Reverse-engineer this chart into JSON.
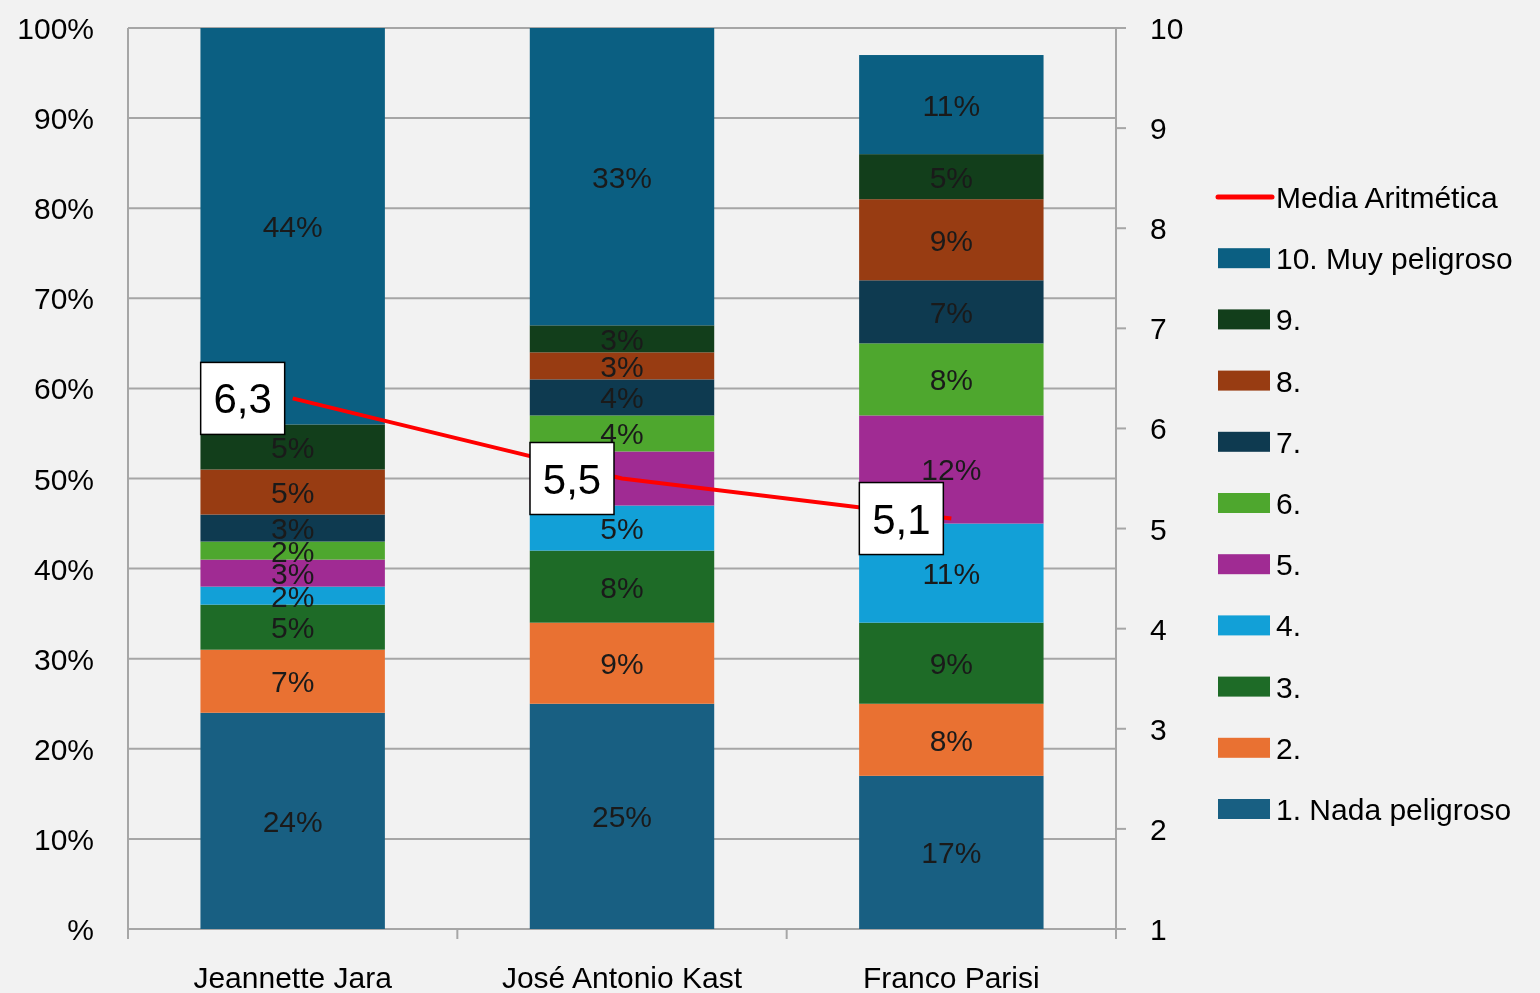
{
  "chart_data": {
    "type": "bar",
    "stacked": true,
    "categories": [
      "Jeannette Jara",
      "José Antonio Kast",
      "Franco Parisi"
    ],
    "series": [
      {
        "name": "1. Nada peligroso",
        "color": "#185f82",
        "values": [
          24,
          25,
          17
        ],
        "value_labels": [
          "24%",
          "25%",
          "17%"
        ]
      },
      {
        "name": "2.",
        "color": "#e97132",
        "values": [
          7,
          9,
          8
        ],
        "value_labels": [
          "7%",
          "9%",
          "8%"
        ]
      },
      {
        "name": "3.",
        "color": "#1e6b27",
        "values": [
          5,
          8,
          9
        ],
        "value_labels": [
          "5%",
          "8%",
          "9%"
        ]
      },
      {
        "name": "4.",
        "color": "#12a0d7",
        "values": [
          2,
          5,
          11
        ],
        "value_labels": [
          "2%",
          "5%",
          "11%"
        ]
      },
      {
        "name": "5.",
        "color": "#a02b93",
        "values": [
          3,
          6,
          12
        ],
        "value_labels": [
          "3%",
          null,
          "12%"
        ]
      },
      {
        "name": "6.",
        "color": "#4ea72e",
        "values": [
          2,
          4,
          8
        ],
        "value_labels": [
          "2%",
          "4%",
          "8%"
        ]
      },
      {
        "name": "7.",
        "color": "#0e3a50",
        "values": [
          3,
          4,
          7
        ],
        "value_labels": [
          "3%",
          "4%",
          "7%"
        ]
      },
      {
        "name": "8.",
        "color": "#983c12",
        "values": [
          5,
          3,
          9
        ],
        "value_labels": [
          "5%",
          "3%",
          "9%"
        ]
      },
      {
        "name": "9.",
        "color": "#123e1b",
        "values": [
          5,
          3,
          5
        ],
        "value_labels": [
          "5%",
          "3%",
          "5%"
        ]
      },
      {
        "name": "10. Muy peligroso",
        "color": "#0b5f82",
        "values": [
          44,
          33,
          11
        ],
        "value_labels": [
          "44%",
          "33%",
          "11%"
        ]
      },
      {
        "name": "Media Aritmética",
        "type": "line",
        "axis": "y2",
        "color": "#ff0000",
        "values": [
          6.3,
          5.5,
          5.1
        ],
        "value_labels": [
          "6,3",
          "5,5",
          "5,1"
        ]
      }
    ],
    "ylim": [
      0,
      100
    ],
    "yticks": [
      {
        "value": 0,
        "label": "%"
      },
      {
        "value": 10,
        "label": "10%"
      },
      {
        "value": 20,
        "label": "20%"
      },
      {
        "value": 30,
        "label": "30%"
      },
      {
        "value": 40,
        "label": "40%"
      },
      {
        "value": 50,
        "label": "50%"
      },
      {
        "value": 60,
        "label": "60%"
      },
      {
        "value": 70,
        "label": "70%"
      },
      {
        "value": 80,
        "label": "80%"
      },
      {
        "value": 90,
        "label": "90%"
      },
      {
        "value": 100,
        "label": "100%"
      }
    ],
    "y2lim": [
      1,
      10
    ],
    "y2ticks": [
      1,
      2,
      3,
      4,
      5,
      6,
      7,
      8,
      9,
      10
    ],
    "grid": "y",
    "legend": "right"
  }
}
